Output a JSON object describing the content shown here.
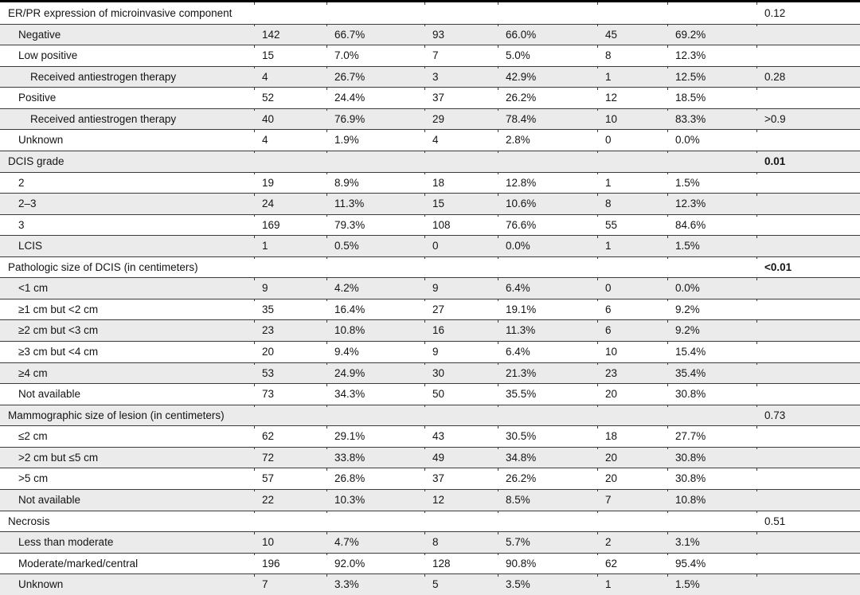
{
  "colors": {
    "rule": "#3b3b3b",
    "top_border": "#000000",
    "row_shading": "#ebebeb",
    "text": "#141414"
  },
  "table": {
    "columns": [
      "label",
      "n1",
      "pct1",
      "n2",
      "pct2",
      "n3",
      "pct3",
      "p"
    ],
    "rows": [
      {
        "label": "ER/PR expression of microinvasive component",
        "indent": 0,
        "n1": "",
        "pct1": "",
        "n2": "",
        "pct2": "",
        "n3": "",
        "pct3": "",
        "p": "0.12",
        "p_bold": false
      },
      {
        "label": "Negative",
        "indent": 1,
        "n1": "142",
        "pct1": "66.7%",
        "n2": "93",
        "pct2": "66.0%",
        "n3": "45",
        "pct3": "69.2%",
        "p": "",
        "p_bold": false
      },
      {
        "label": "Low positive",
        "indent": 1,
        "n1": "15",
        "pct1": "7.0%",
        "n2": "7",
        "pct2": "5.0%",
        "n3": "8",
        "pct3": "12.3%",
        "p": "",
        "p_bold": false
      },
      {
        "label": "Received antiestrogen therapy",
        "indent": 2,
        "n1": "4",
        "pct1": "26.7%",
        "n2": "3",
        "pct2": "42.9%",
        "n3": "1",
        "pct3": "12.5%",
        "p": "0.28",
        "p_bold": false
      },
      {
        "label": "Positive",
        "indent": 1,
        "n1": "52",
        "pct1": "24.4%",
        "n2": "37",
        "pct2": "26.2%",
        "n3": "12",
        "pct3": "18.5%",
        "p": "",
        "p_bold": false
      },
      {
        "label": "Received antiestrogen therapy",
        "indent": 2,
        "n1": "40",
        "pct1": "76.9%",
        "n2": "29",
        "pct2": "78.4%",
        "n3": "10",
        "pct3": "83.3%",
        "p": ">0.9",
        "p_bold": false
      },
      {
        "label": "Unknown",
        "indent": 1,
        "n1": "4",
        "pct1": "1.9%",
        "n2": "4",
        "pct2": "2.8%",
        "n3": "0",
        "pct3": "0.0%",
        "p": "",
        "p_bold": false
      },
      {
        "label": "DCIS grade",
        "indent": 0,
        "n1": "",
        "pct1": "",
        "n2": "",
        "pct2": "",
        "n3": "",
        "pct3": "",
        "p": "0.01",
        "p_bold": true
      },
      {
        "label": "2",
        "indent": 1,
        "n1": "19",
        "pct1": "8.9%",
        "n2": "18",
        "pct2": "12.8%",
        "n3": "1",
        "pct3": "1.5%",
        "p": "",
        "p_bold": false
      },
      {
        "label": "2–3",
        "indent": 1,
        "n1": "24",
        "pct1": "11.3%",
        "n2": "15",
        "pct2": "10.6%",
        "n3": "8",
        "pct3": "12.3%",
        "p": "",
        "p_bold": false
      },
      {
        "label": "3",
        "indent": 1,
        "n1": "169",
        "pct1": "79.3%",
        "n2": "108",
        "pct2": "76.6%",
        "n3": "55",
        "pct3": "84.6%",
        "p": "",
        "p_bold": false
      },
      {
        "label": "LCIS",
        "indent": 1,
        "n1": "1",
        "pct1": "0.5%",
        "n2": "0",
        "pct2": "0.0%",
        "n3": "1",
        "pct3": "1.5%",
        "p": "",
        "p_bold": false
      },
      {
        "label": "Pathologic size of DCIS (in centimeters)",
        "indent": 0,
        "n1": "",
        "pct1": "",
        "n2": "",
        "pct2": "",
        "n3": "",
        "pct3": "",
        "p": "<0.01",
        "p_bold": true
      },
      {
        "label": "<1 cm",
        "indent": 1,
        "n1": "9",
        "pct1": "4.2%",
        "n2": "9",
        "pct2": "6.4%",
        "n3": "0",
        "pct3": "0.0%",
        "p": "",
        "p_bold": false
      },
      {
        "label": "≥1 cm but <2 cm",
        "indent": 1,
        "n1": "35",
        "pct1": "16.4%",
        "n2": "27",
        "pct2": "19.1%",
        "n3": "6",
        "pct3": "9.2%",
        "p": "",
        "p_bold": false
      },
      {
        "label": "≥2 cm but <3 cm",
        "indent": 1,
        "n1": "23",
        "pct1": "10.8%",
        "n2": "16",
        "pct2": "11.3%",
        "n3": "6",
        "pct3": "9.2%",
        "p": "",
        "p_bold": false
      },
      {
        "label": "≥3 cm but <4 cm",
        "indent": 1,
        "n1": "20",
        "pct1": "9.4%",
        "n2": "9",
        "pct2": "6.4%",
        "n3": "10",
        "pct3": "15.4%",
        "p": "",
        "p_bold": false
      },
      {
        "label": "≥4 cm",
        "indent": 1,
        "n1": "53",
        "pct1": "24.9%",
        "n2": "30",
        "pct2": "21.3%",
        "n3": "23",
        "pct3": "35.4%",
        "p": "",
        "p_bold": false
      },
      {
        "label": "Not available",
        "indent": 1,
        "n1": "73",
        "pct1": "34.3%",
        "n2": "50",
        "pct2": "35.5%",
        "n3": "20",
        "pct3": "30.8%",
        "p": "",
        "p_bold": false
      },
      {
        "label": "Mammographic size of lesion (in centimeters)",
        "indent": 0,
        "n1": "",
        "pct1": "",
        "n2": "",
        "pct2": "",
        "n3": "",
        "pct3": "",
        "p": "0.73",
        "p_bold": false
      },
      {
        "label": "≤2 cm",
        "indent": 1,
        "n1": "62",
        "pct1": "29.1%",
        "n2": "43",
        "pct2": "30.5%",
        "n3": "18",
        "pct3": "27.7%",
        "p": "",
        "p_bold": false
      },
      {
        "label": ">2 cm but ≤5 cm",
        "indent": 1,
        "n1": "72",
        "pct1": "33.8%",
        "n2": "49",
        "pct2": "34.8%",
        "n3": "20",
        "pct3": "30.8%",
        "p": "",
        "p_bold": false
      },
      {
        "label": ">5 cm",
        "indent": 1,
        "n1": "57",
        "pct1": "26.8%",
        "n2": "37",
        "pct2": "26.2%",
        "n3": "20",
        "pct3": "30.8%",
        "p": "",
        "p_bold": false
      },
      {
        "label": "Not available",
        "indent": 1,
        "n1": "22",
        "pct1": "10.3%",
        "n2": "12",
        "pct2": "8.5%",
        "n3": "7",
        "pct3": "10.8%",
        "p": "",
        "p_bold": false
      },
      {
        "label": "Necrosis",
        "indent": 0,
        "n1": "",
        "pct1": "",
        "n2": "",
        "pct2": "",
        "n3": "",
        "pct3": "",
        "p": "0.51",
        "p_bold": false
      },
      {
        "label": "Less than moderate",
        "indent": 1,
        "n1": "10",
        "pct1": "4.7%",
        "n2": "8",
        "pct2": "5.7%",
        "n3": "2",
        "pct3": "3.1%",
        "p": "",
        "p_bold": false
      },
      {
        "label": "Moderate/marked/central",
        "indent": 1,
        "n1": "196",
        "pct1": "92.0%",
        "n2": "128",
        "pct2": "90.8%",
        "n3": "62",
        "pct3": "95.4%",
        "p": "",
        "p_bold": false
      },
      {
        "label": "Unknown",
        "indent": 1,
        "n1": "7",
        "pct1": "3.3%",
        "n2": "5",
        "pct2": "3.5%",
        "n3": "1",
        "pct3": "1.5%",
        "p": "",
        "p_bold": false
      }
    ]
  }
}
